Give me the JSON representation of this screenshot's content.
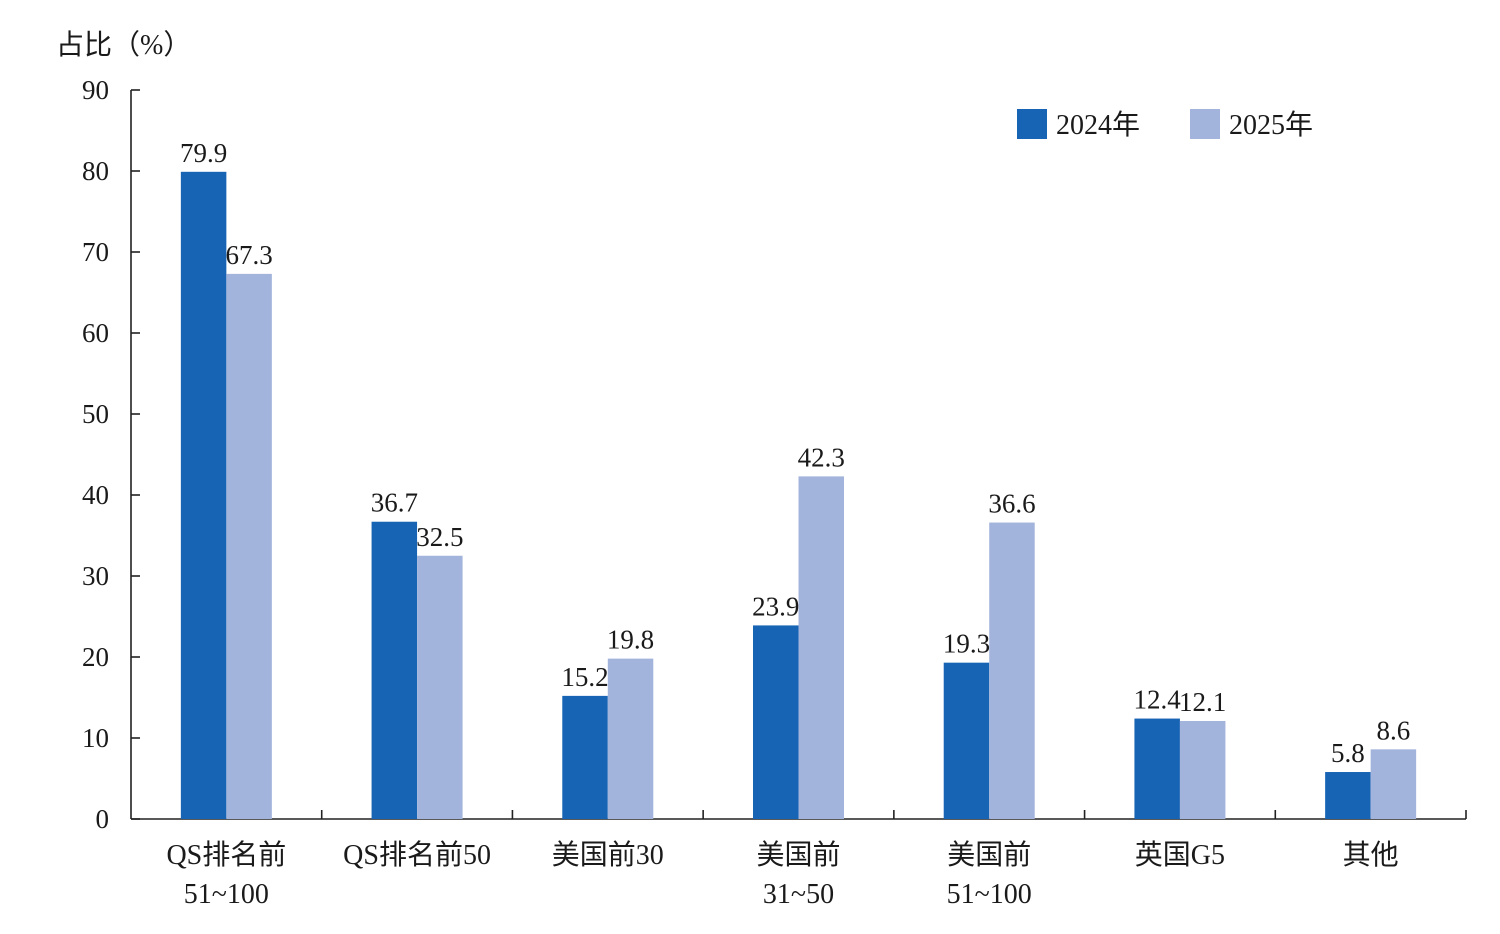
{
  "chart_data": {
    "type": "bar",
    "ylabel": "占比（%）",
    "xlabel": "",
    "ylim": [
      0,
      90
    ],
    "yticks": [
      0,
      10,
      20,
      30,
      40,
      50,
      60,
      70,
      80,
      90
    ],
    "grid": false,
    "legend_position": "top-right",
    "categories": [
      [
        "QS排名前",
        "51~100"
      ],
      [
        "QS排名前50"
      ],
      [
        "美国前30"
      ],
      [
        "美国前",
        "31~50"
      ],
      [
        "美国前",
        "51~100"
      ],
      [
        "英国G5"
      ],
      [
        "其他"
      ]
    ],
    "series": [
      {
        "name": "2024年",
        "color": "#1864b4",
        "values": [
          79.9,
          36.7,
          15.2,
          23.9,
          19.3,
          12.4,
          5.8
        ]
      },
      {
        "name": "2025年",
        "color": "#a3b4dc",
        "values": [
          67.3,
          32.5,
          19.8,
          42.3,
          36.6,
          12.1,
          8.6
        ]
      }
    ]
  }
}
